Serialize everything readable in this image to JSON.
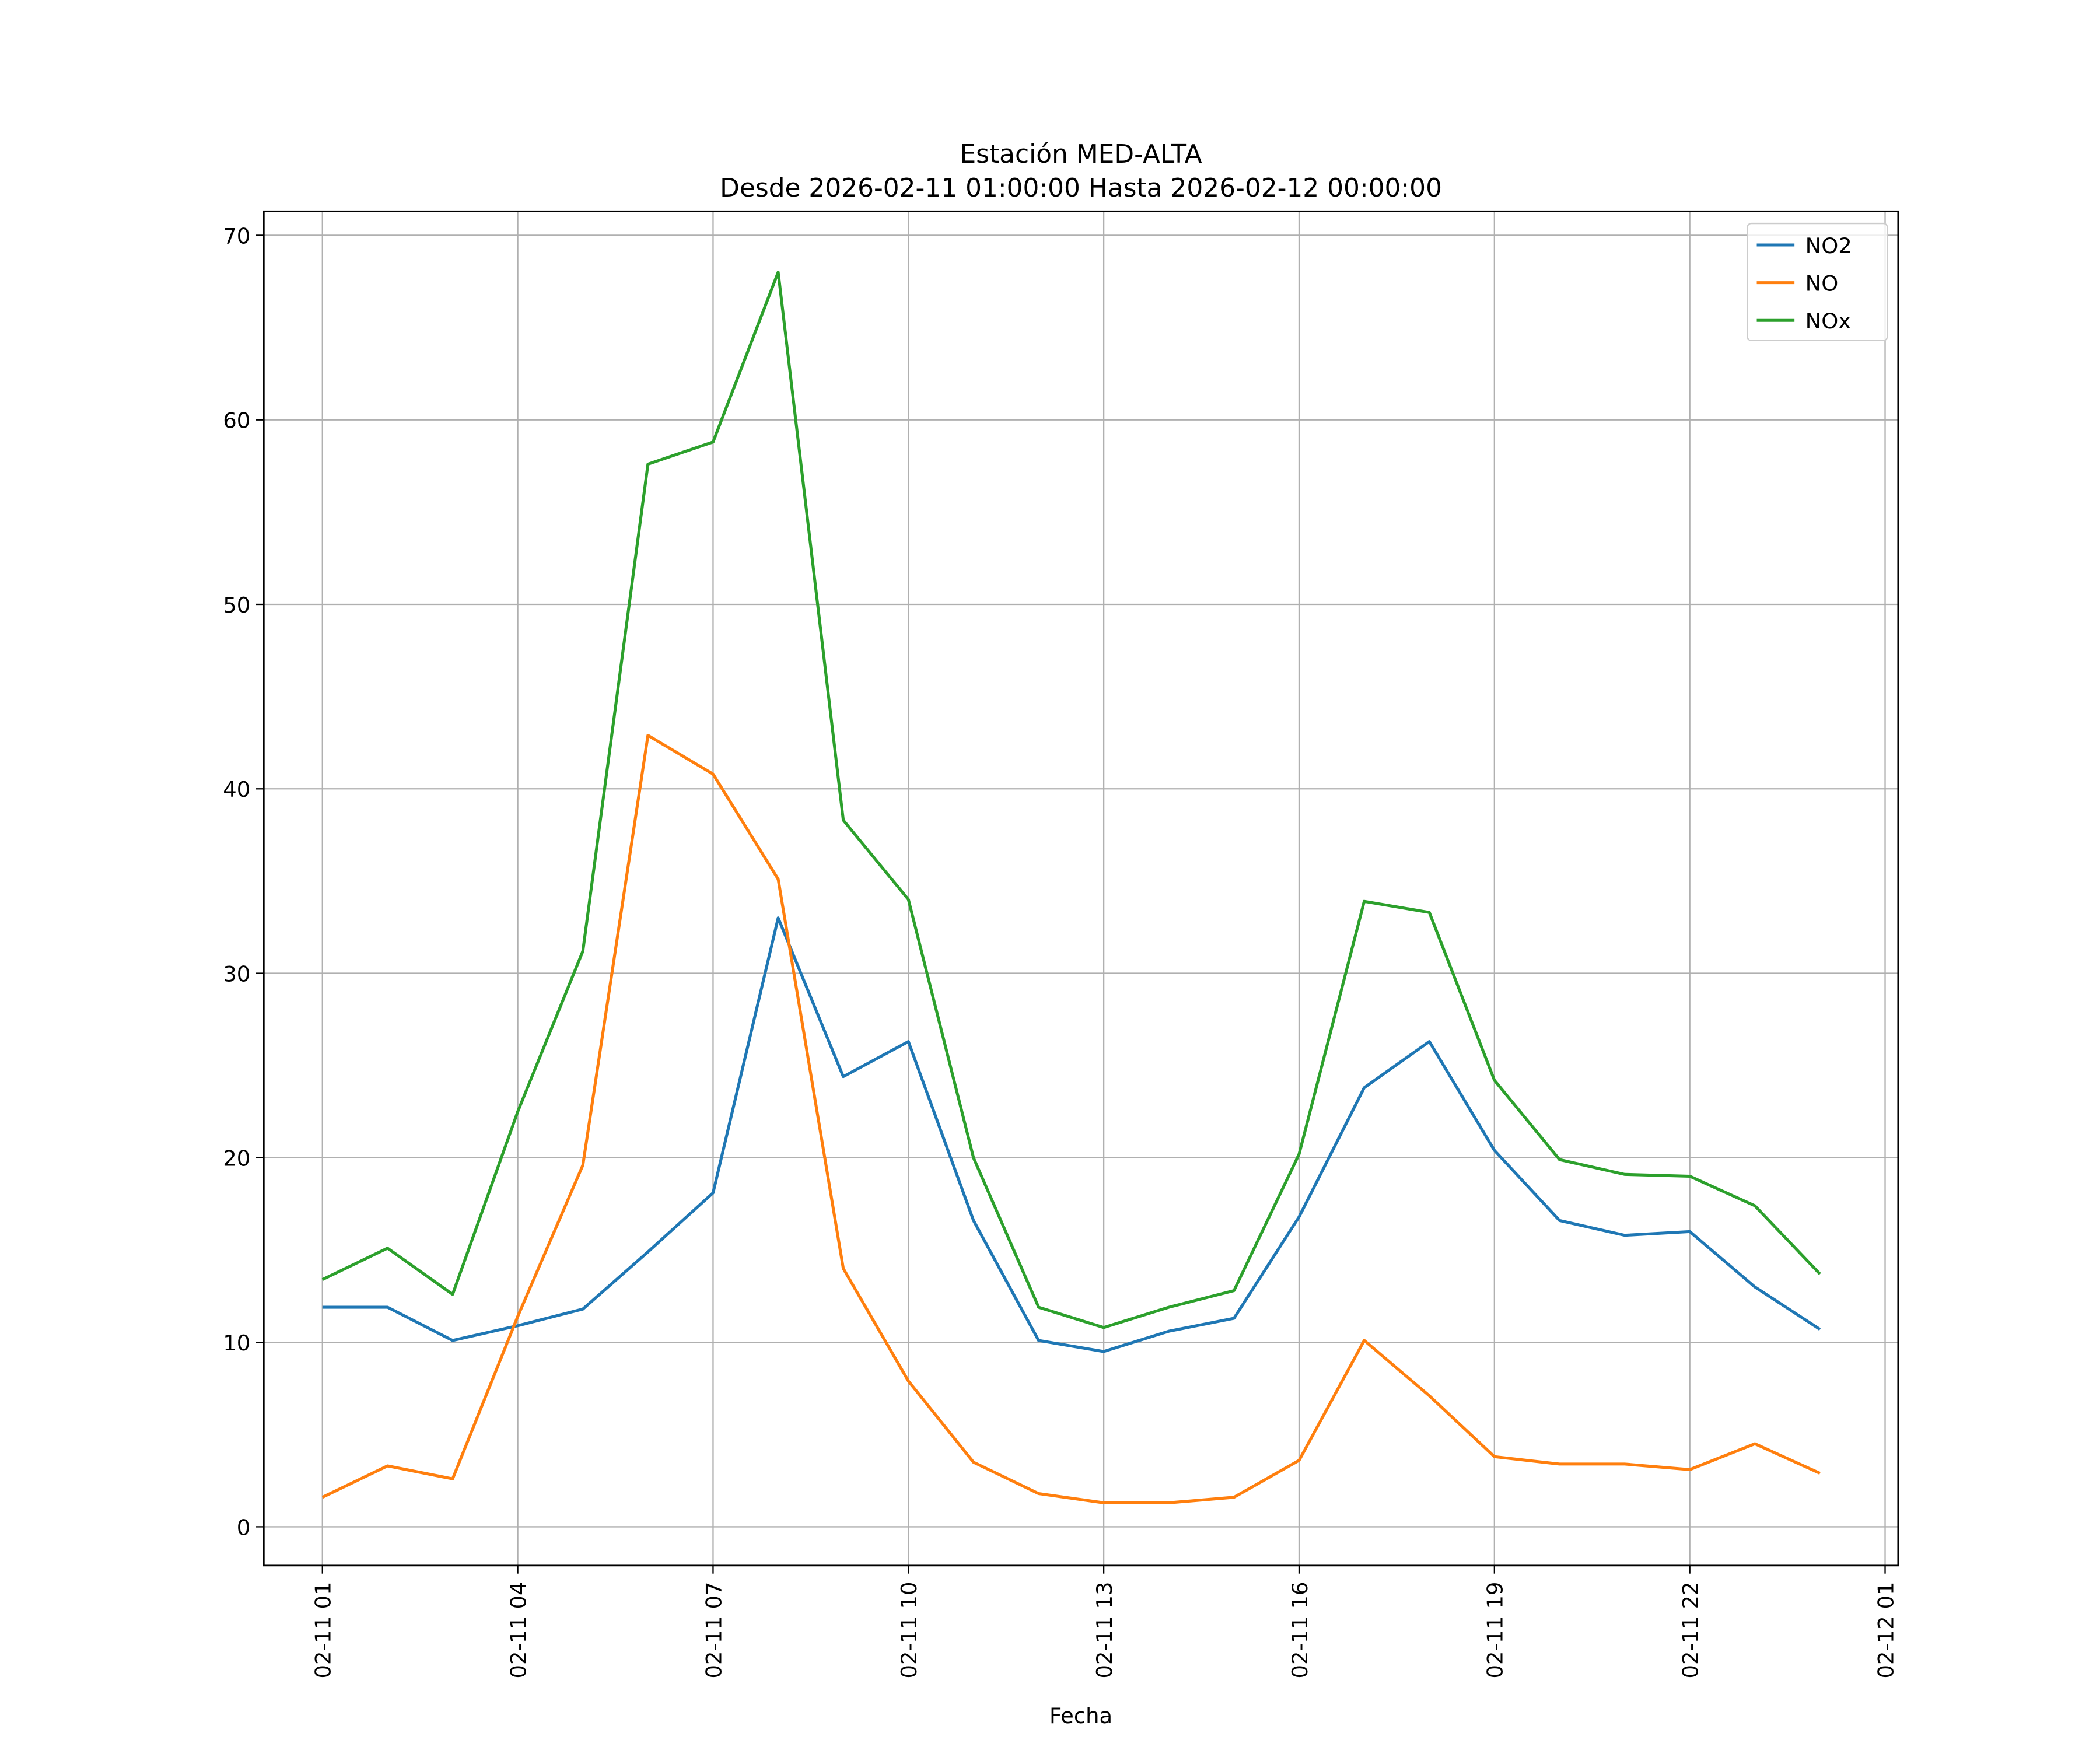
{
  "chart_data": {
    "type": "line",
    "title": "Estación MED-ALTA",
    "subtitle": "Desde 2026-02-11 01:00:00 Hasta 2026-02-12 00:00:00",
    "xlabel": "Fecha",
    "ylabel": "",
    "x_hours": [
      1,
      2,
      3,
      4,
      5,
      6,
      7,
      8,
      9,
      10,
      11,
      12,
      13,
      14,
      15,
      16,
      17,
      18,
      19,
      20,
      21,
      22,
      23,
      24
    ],
    "xlim": [
      0.1,
      25.2
    ],
    "ylim": [
      -2.1,
      71.3
    ],
    "grid": true,
    "legend_position": "top-right",
    "x_ticks": [
      {
        "hour": 1,
        "label": "02-11 01"
      },
      {
        "hour": 4,
        "label": "02-11 04"
      },
      {
        "hour": 7,
        "label": "02-11 07"
      },
      {
        "hour": 10,
        "label": "02-11 10"
      },
      {
        "hour": 13,
        "label": "02-11 13"
      },
      {
        "hour": 16,
        "label": "02-11 16"
      },
      {
        "hour": 19,
        "label": "02-11 19"
      },
      {
        "hour": 22,
        "label": "02-11 22"
      },
      {
        "hour": 25,
        "label": "02-12 01"
      }
    ],
    "y_ticks": [
      {
        "value": 0,
        "label": "0"
      },
      {
        "value": 10,
        "label": "10"
      },
      {
        "value": 20,
        "label": "20"
      },
      {
        "value": 30,
        "label": "30"
      },
      {
        "value": 40,
        "label": "40"
      },
      {
        "value": 50,
        "label": "50"
      },
      {
        "value": 60,
        "label": "60"
      },
      {
        "value": 70,
        "label": "70"
      }
    ],
    "series": [
      {
        "name": "NO2",
        "color": "#1f77b4",
        "values": [
          11.9,
          11.9,
          10.1,
          10.9,
          11.8,
          14.9,
          18.1,
          33.0,
          24.4,
          26.3,
          16.6,
          10.1,
          9.5,
          10.6,
          11.3,
          16.8,
          23.8,
          26.3,
          20.4,
          16.6,
          15.8,
          16.0,
          13.0,
          10.7
        ]
      },
      {
        "name": "NO",
        "color": "#ff7f0e",
        "values": [
          1.6,
          3.3,
          2.6,
          11.4,
          19.6,
          42.9,
          40.8,
          35.1,
          14.0,
          7.9,
          3.5,
          1.8,
          1.3,
          1.3,
          1.6,
          3.6,
          10.1,
          7.1,
          3.8,
          3.4,
          3.4,
          3.1,
          4.5,
          2.9
        ]
      },
      {
        "name": "NOx",
        "color": "#2ca02c",
        "values": [
          13.4,
          15.1,
          12.6,
          22.5,
          31.2,
          57.6,
          58.8,
          68.0,
          38.3,
          34.0,
          20.0,
          11.9,
          10.8,
          11.9,
          12.8,
          20.2,
          33.9,
          33.3,
          24.2,
          19.9,
          19.1,
          19.0,
          17.4,
          13.7
        ]
      }
    ]
  }
}
